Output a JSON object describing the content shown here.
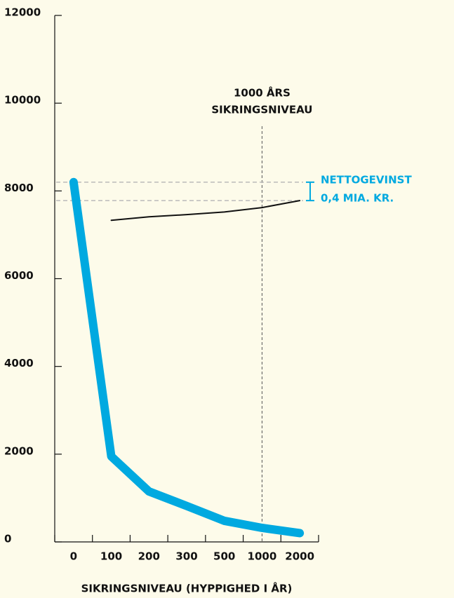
{
  "chart_data": {
    "type": "line",
    "x_label": "SIKRINGSNIVEAU (HYPPIGHED I ÅR)",
    "categories": [
      "0",
      "100",
      "200",
      "300",
      "500",
      "1000",
      "2000"
    ],
    "series": [
      {
        "color": "#00a9e0",
        "values": [
          8200,
          1950,
          1150,
          820,
          480,
          320,
          200
        ]
      },
      {
        "color": "#111111",
        "values": [
          null,
          7330,
          7410,
          7460,
          7520,
          7620,
          7780
        ]
      }
    ],
    "ylim": [
      0,
      12000
    ],
    "yticks": [
      0,
      2000,
      4000,
      6000,
      8000,
      10000,
      12000
    ],
    "marker_category": 5,
    "marker_label": [
      "1000 ÅRS",
      "SIKRINGSNIVEAU"
    ],
    "gain_label": [
      "NETTOGEVINST",
      "0,4 MIA. KR."
    ],
    "gain_color": "#00a9e0"
  }
}
